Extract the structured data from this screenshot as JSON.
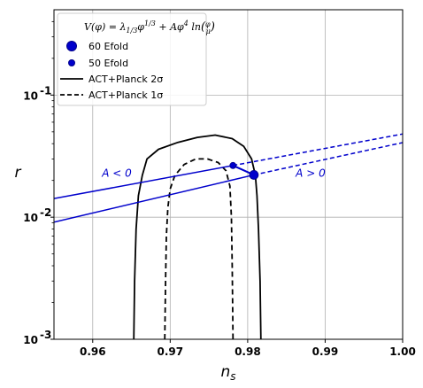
{
  "chart_data": {
    "type": "line",
    "xlabel": "n_s",
    "ylabel": "r",
    "xlim": [
      0.955,
      1.0
    ],
    "ylim": [
      0.001,
      0.5
    ],
    "yscale": "log",
    "grid": true,
    "x_ticks": [
      0.96,
      0.97,
      0.98,
      0.99,
      1.0
    ],
    "x_tick_labels": [
      "0.96",
      "0.97",
      "0.98",
      "0.99",
      "1.00"
    ],
    "y_ticks": [
      0.001,
      0.01,
      0.1
    ],
    "y_tick_labels": [
      "10",
      "10",
      "10"
    ],
    "y_tick_exponents": [
      "-3",
      "-2",
      "-1"
    ],
    "legend": {
      "placement": "top-left",
      "title": "V(φ) = λ1/3 φ1/3 + Aφ4 ln(φ/μ)",
      "entries": [
        "60 Efold",
        "50 Efold",
        "ACT+Planck 2σ",
        "ACT+Planck 1σ"
      ]
    },
    "colors": {
      "model": "#0000cc",
      "contour": "#000000"
    },
    "series": [
      {
        "name": "60 Efold",
        "kind": "scatter",
        "x": [
          0.9808
        ],
        "y": [
          0.0222
        ]
      },
      {
        "name": "50 Efold",
        "kind": "scatter",
        "x": [
          0.9781
        ],
        "y": [
          0.0265
        ]
      },
      {
        "name": "ACT+Planck 2σ",
        "kind": "contour",
        "x": [
          0.9653,
          0.9654,
          0.9656,
          0.9659,
          0.9664,
          0.967,
          0.9685,
          0.971,
          0.9735,
          0.9758,
          0.978,
          0.9795,
          0.9805,
          0.981,
          0.9812,
          0.9814,
          0.9816,
          0.9817
        ],
        "y": [
          0.001,
          0.003,
          0.008,
          0.015,
          0.022,
          0.03,
          0.036,
          0.041,
          0.045,
          0.047,
          0.044,
          0.038,
          0.03,
          0.022,
          0.015,
          0.008,
          0.003,
          0.001
        ]
      },
      {
        "name": "ACT+Planck 1σ",
        "kind": "contour",
        "x": [
          0.9693,
          0.9694,
          0.9695,
          0.9697,
          0.97,
          0.9706,
          0.9718,
          0.9733,
          0.9748,
          0.9762,
          0.9772,
          0.9777,
          0.9779,
          0.978,
          0.9781
        ],
        "y": [
          0.001,
          0.003,
          0.007,
          0.012,
          0.017,
          0.022,
          0.027,
          0.03,
          0.03,
          0.028,
          0.024,
          0.018,
          0.01,
          0.004,
          0.001
        ]
      },
      {
        "name": "60 Efold A<0",
        "kind": "line",
        "style": "solid",
        "x": [
          0.955,
          0.9808
        ],
        "y": [
          0.0091,
          0.0222
        ]
      },
      {
        "name": "60 Efold A>0",
        "kind": "line",
        "style": "dashed",
        "x": [
          0.9808,
          1.0
        ],
        "y": [
          0.0222,
          0.0408
        ]
      },
      {
        "name": "50 Efold A<0",
        "kind": "line",
        "style": "solid",
        "x": [
          0.955,
          0.9781
        ],
        "y": [
          0.0142,
          0.0265
        ]
      },
      {
        "name": "50 Efold A>0",
        "kind": "line",
        "style": "dashed",
        "x": [
          0.9781,
          1.0
        ],
        "y": [
          0.0265,
          0.048
        ]
      },
      {
        "name": "A=0 connector",
        "kind": "line",
        "style": "solid",
        "x": [
          0.9781,
          0.9808
        ],
        "y": [
          0.0265,
          0.0222
        ]
      }
    ],
    "annotations": [
      {
        "text": "A < 0",
        "x": 0.9612,
        "y": 0.0215
      },
      {
        "text": "A > 0",
        "x": 0.9862,
        "y": 0.0215
      }
    ]
  }
}
